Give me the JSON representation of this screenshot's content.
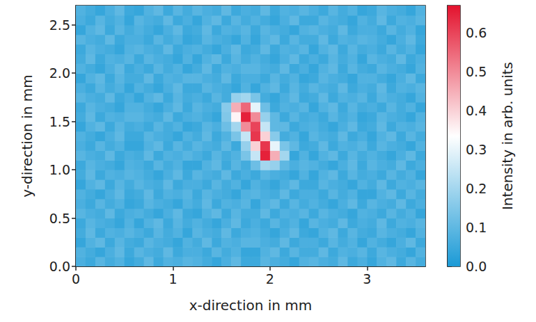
{
  "chart_data": {
    "type": "heatmap",
    "xlabel": "x-direction in mm",
    "ylabel": "y-direction in mm",
    "xlim": [
      0,
      3.6
    ],
    "ylim": [
      0,
      2.7
    ],
    "xticks": [
      0,
      1,
      2,
      3
    ],
    "yticks": [
      {
        "value": 0,
        "label": "0.0"
      },
      {
        "value": 0.5,
        "label": "0.5"
      },
      {
        "value": 1,
        "label": "1.0"
      },
      {
        "value": 1.5,
        "label": "1.5"
      },
      {
        "value": 2,
        "label": "2.0"
      },
      {
        "value": 2.5,
        "label": "2.5"
      }
    ],
    "grid": false,
    "colorbar": {
      "label": "Intensity in arb. units",
      "range": [
        0,
        0.67
      ],
      "ticks": [
        {
          "value": 0,
          "label": "0.0"
        },
        {
          "value": 0.1,
          "label": "0.1"
        },
        {
          "value": 0.2,
          "label": "0.2"
        },
        {
          "value": 0.3,
          "label": "0.3"
        },
        {
          "value": 0.4,
          "label": "0.4"
        },
        {
          "value": 0.5,
          "label": "0.5"
        },
        {
          "value": 0.6,
          "label": "0.6"
        }
      ],
      "colors": [
        "#1b9ad6",
        "#ffffff",
        "#e3132e"
      ]
    },
    "x": [
      0.05,
      0.15,
      0.25,
      0.35,
      0.45,
      0.55,
      0.65,
      0.75,
      0.85,
      0.95,
      1.05,
      1.15,
      1.25,
      1.35,
      1.45,
      1.55,
      1.65,
      1.75,
      1.85,
      1.95,
      2.05,
      2.15,
      2.25,
      2.35,
      2.45,
      2.55,
      2.65,
      2.75,
      2.85,
      2.95,
      3.05,
      3.15,
      3.25,
      3.35,
      3.45,
      3.55
    ],
    "y": [
      0.05,
      0.15,
      0.25,
      0.35,
      0.45,
      0.55,
      0.65,
      0.75,
      0.85,
      0.95,
      1.05,
      1.15,
      1.25,
      1.35,
      1.45,
      1.55,
      1.65,
      1.75,
      1.85,
      1.95,
      2.05,
      2.15,
      2.25,
      2.35,
      2.45,
      2.55,
      2.65
    ],
    "z": [
      [
        0.07,
        0.05,
        0.09,
        0.06,
        0.08,
        0.04,
        0.06,
        0.1,
        0.05,
        0.08,
        0.07,
        0.09,
        0.08,
        0.06,
        0.04,
        0.07,
        0.1,
        0.05,
        0.05,
        0.09,
        0.07,
        0.06,
        0.04,
        0.08,
        0.09,
        0.07,
        0.06,
        0.1,
        0.05,
        0.07,
        0.04,
        0.08,
        0.1,
        0.05,
        0.09,
        0.06
      ],
      [
        0.08,
        0.06,
        0.04,
        0.07,
        0.1,
        0.05,
        0.09,
        0.07,
        0.06,
        0.1,
        0.05,
        0.07,
        0.07,
        0.05,
        0.09,
        0.06,
        0.08,
        0.04,
        0.04,
        0.08,
        0.1,
        0.05,
        0.09,
        0.06,
        0.06,
        0.1,
        0.05,
        0.08,
        0.07,
        0.09,
        0.05,
        0.09,
        0.07,
        0.06,
        0.04,
        0.08
      ],
      [
        0.04,
        0.08,
        0.1,
        0.05,
        0.09,
        0.06,
        0.05,
        0.09,
        0.07,
        0.06,
        0.04,
        0.08,
        0.06,
        0.1,
        0.05,
        0.08,
        0.07,
        0.09,
        0.09,
        0.07,
        0.06,
        0.1,
        0.05,
        0.07,
        0.07,
        0.05,
        0.09,
        0.06,
        0.08,
        0.04,
        0.08,
        0.06,
        0.04,
        0.07,
        0.1,
        0.05
      ],
      [
        0.06,
        0.1,
        0.05,
        0.08,
        0.07,
        0.09,
        0.07,
        0.05,
        0.09,
        0.06,
        0.08,
        0.04,
        0.09,
        0.07,
        0.06,
        0.1,
        0.05,
        0.07,
        0.08,
        0.06,
        0.04,
        0.07,
        0.1,
        0.05,
        0.04,
        0.08,
        0.1,
        0.05,
        0.09,
        0.06,
        0.05,
        0.09,
        0.07,
        0.06,
        0.04,
        0.08
      ],
      [
        0.05,
        0.09,
        0.07,
        0.06,
        0.04,
        0.08,
        0.04,
        0.08,
        0.1,
        0.05,
        0.09,
        0.06,
        0.08,
        0.06,
        0.04,
        0.07,
        0.1,
        0.05,
        0.07,
        0.05,
        0.09,
        0.06,
        0.08,
        0.04,
        0.09,
        0.07,
        0.06,
        0.1,
        0.05,
        0.07,
        0.06,
        0.1,
        0.05,
        0.08,
        0.07,
        0.09
      ],
      [
        0.09,
        0.07,
        0.06,
        0.1,
        0.05,
        0.07,
        0.08,
        0.06,
        0.04,
        0.07,
        0.1,
        0.05,
        0.04,
        0.08,
        0.1,
        0.05,
        0.09,
        0.06,
        0.06,
        0.1,
        0.05,
        0.08,
        0.07,
        0.09,
        0.05,
        0.09,
        0.07,
        0.06,
        0.04,
        0.08,
        0.07,
        0.05,
        0.09,
        0.06,
        0.08,
        0.04
      ],
      [
        0.07,
        0.05,
        0.09,
        0.06,
        0.08,
        0.04,
        0.05,
        0.09,
        0.07,
        0.06,
        0.04,
        0.08,
        0.06,
        0.1,
        0.05,
        0.08,
        0.07,
        0.09,
        0.04,
        0.08,
        0.1,
        0.05,
        0.09,
        0.06,
        0.08,
        0.06,
        0.04,
        0.07,
        0.1,
        0.05,
        0.09,
        0.07,
        0.06,
        0.1,
        0.05,
        0.07
      ],
      [
        0.08,
        0.06,
        0.04,
        0.07,
        0.1,
        0.05,
        0.06,
        0.1,
        0.05,
        0.08,
        0.07,
        0.09,
        0.05,
        0.09,
        0.07,
        0.06,
        0.04,
        0.08,
        0.09,
        0.07,
        0.06,
        0.1,
        0.05,
        0.07,
        0.07,
        0.05,
        0.09,
        0.06,
        0.08,
        0.04,
        0.04,
        0.08,
        0.1,
        0.05,
        0.09,
        0.06
      ],
      [
        0.04,
        0.08,
        0.1,
        0.05,
        0.09,
        0.06,
        0.09,
        0.07,
        0.06,
        0.1,
        0.05,
        0.07,
        0.07,
        0.05,
        0.09,
        0.06,
        0.08,
        0.04,
        0.08,
        0.06,
        0.04,
        0.07,
        0.1,
        0.05,
        0.05,
        0.09,
        0.07,
        0.06,
        0.04,
        0.08,
        0.06,
        0.1,
        0.05,
        0.08,
        0.07,
        0.09
      ],
      [
        0.06,
        0.1,
        0.05,
        0.08,
        0.07,
        0.09,
        0.08,
        0.06,
        0.04,
        0.07,
        0.1,
        0.05,
        0.09,
        0.07,
        0.06,
        0.1,
        0.05,
        0.07,
        0.05,
        0.09,
        0.07,
        0.06,
        0.04,
        0.08,
        0.04,
        0.08,
        0.1,
        0.05,
        0.09,
        0.06,
        0.07,
        0.05,
        0.09,
        0.06,
        0.08,
        0.04
      ],
      [
        0.05,
        0.09,
        0.07,
        0.06,
        0.04,
        0.08,
        0.07,
        0.05,
        0.09,
        0.06,
        0.08,
        0.04,
        0.04,
        0.08,
        0.1,
        0.05,
        0.09,
        0.06,
        0.12,
        0.2,
        0.18,
        0.1,
        0.07,
        0.09,
        0.08,
        0.06,
        0.04,
        0.07,
        0.1,
        0.05,
        0.09,
        0.07,
        0.06,
        0.1,
        0.05,
        0.07
      ],
      [
        0.09,
        0.07,
        0.06,
        0.1,
        0.05,
        0.07,
        0.06,
        0.1,
        0.05,
        0.08,
        0.07,
        0.09,
        0.07,
        0.05,
        0.09,
        0.06,
        0.08,
        0.14,
        0.25,
        0.65,
        0.45,
        0.2,
        0.04,
        0.08,
        0.04,
        0.08,
        0.1,
        0.05,
        0.09,
        0.06,
        0.08,
        0.06,
        0.04,
        0.07,
        0.1,
        0.05
      ],
      [
        0.07,
        0.05,
        0.09,
        0.06,
        0.08,
        0.04,
        0.04,
        0.08,
        0.1,
        0.05,
        0.09,
        0.06,
        0.09,
        0.07,
        0.06,
        0.1,
        0.05,
        0.18,
        0.4,
        0.62,
        0.3,
        0.14,
        0.1,
        0.05,
        0.06,
        0.1,
        0.05,
        0.08,
        0.07,
        0.09,
        0.05,
        0.09,
        0.07,
        0.06,
        0.04,
        0.08
      ],
      [
        0.08,
        0.06,
        0.04,
        0.07,
        0.1,
        0.05,
        0.05,
        0.09,
        0.07,
        0.06,
        0.04,
        0.08,
        0.06,
        0.1,
        0.05,
        0.08,
        0.14,
        0.25,
        0.62,
        0.4,
        0.16,
        0.06,
        0.08,
        0.04,
        0.09,
        0.07,
        0.06,
        0.1,
        0.05,
        0.07,
        0.04,
        0.08,
        0.1,
        0.05,
        0.09,
        0.06
      ],
      [
        0.04,
        0.08,
        0.1,
        0.05,
        0.09,
        0.06,
        0.07,
        0.05,
        0.09,
        0.06,
        0.08,
        0.04,
        0.05,
        0.09,
        0.07,
        0.12,
        0.2,
        0.5,
        0.6,
        0.25,
        0.1,
        0.1,
        0.05,
        0.07,
        0.08,
        0.06,
        0.04,
        0.07,
        0.1,
        0.05,
        0.06,
        0.1,
        0.05,
        0.08,
        0.07,
        0.09
      ],
      [
        0.06,
        0.1,
        0.05,
        0.08,
        0.07,
        0.09,
        0.09,
        0.07,
        0.06,
        0.1,
        0.05,
        0.07,
        0.08,
        0.06,
        0.04,
        0.15,
        0.35,
        0.65,
        0.5,
        0.18,
        0.1,
        0.05,
        0.09,
        0.06,
        0.07,
        0.05,
        0.09,
        0.06,
        0.08,
        0.04,
        0.05,
        0.09,
        0.07,
        0.06,
        0.04,
        0.08
      ],
      [
        0.05,
        0.09,
        0.07,
        0.06,
        0.04,
        0.08,
        0.08,
        0.06,
        0.04,
        0.07,
        0.1,
        0.05,
        0.09,
        0.07,
        0.06,
        0.16,
        0.45,
        0.55,
        0.3,
        0.12,
        0.05,
        0.08,
        0.07,
        0.09,
        0.04,
        0.08,
        0.1,
        0.05,
        0.09,
        0.06,
        0.07,
        0.05,
        0.09,
        0.06,
        0.08,
        0.04
      ],
      [
        0.09,
        0.07,
        0.06,
        0.1,
        0.05,
        0.07,
        0.04,
        0.08,
        0.1,
        0.05,
        0.09,
        0.06,
        0.07,
        0.05,
        0.09,
        0.06,
        0.18,
        0.2,
        0.14,
        0.06,
        0.04,
        0.07,
        0.1,
        0.05,
        0.06,
        0.1,
        0.05,
        0.08,
        0.07,
        0.09,
        0.05,
        0.09,
        0.07,
        0.06,
        0.04,
        0.08
      ],
      [
        0.07,
        0.05,
        0.09,
        0.06,
        0.08,
        0.04,
        0.08,
        0.06,
        0.04,
        0.07,
        0.1,
        0.05,
        0.05,
        0.09,
        0.07,
        0.06,
        0.04,
        0.08,
        0.04,
        0.08,
        0.1,
        0.05,
        0.09,
        0.06,
        0.09,
        0.07,
        0.06,
        0.1,
        0.05,
        0.07,
        0.06,
        0.1,
        0.05,
        0.08,
        0.07,
        0.09
      ],
      [
        0.04,
        0.08,
        0.1,
        0.05,
        0.09,
        0.06,
        0.06,
        0.1,
        0.05,
        0.08,
        0.07,
        0.09,
        0.09,
        0.07,
        0.06,
        0.1,
        0.05,
        0.07,
        0.07,
        0.05,
        0.09,
        0.06,
        0.08,
        0.04,
        0.05,
        0.09,
        0.07,
        0.06,
        0.04,
        0.08,
        0.08,
        0.06,
        0.04,
        0.07,
        0.1,
        0.05
      ],
      [
        0.08,
        0.06,
        0.04,
        0.07,
        0.1,
        0.05,
        0.07,
        0.05,
        0.09,
        0.06,
        0.08,
        0.04,
        0.06,
        0.1,
        0.05,
        0.08,
        0.07,
        0.09,
        0.09,
        0.07,
        0.06,
        0.1,
        0.05,
        0.07,
        0.04,
        0.08,
        0.1,
        0.05,
        0.09,
        0.06,
        0.05,
        0.09,
        0.07,
        0.06,
        0.04,
        0.08
      ],
      [
        0.06,
        0.1,
        0.05,
        0.08,
        0.07,
        0.09,
        0.05,
        0.09,
        0.07,
        0.06,
        0.04,
        0.08,
        0.04,
        0.08,
        0.1,
        0.05,
        0.09,
        0.06,
        0.08,
        0.06,
        0.04,
        0.07,
        0.1,
        0.05,
        0.07,
        0.05,
        0.09,
        0.06,
        0.08,
        0.04,
        0.09,
        0.07,
        0.06,
        0.1,
        0.05,
        0.07
      ],
      [
        0.05,
        0.09,
        0.07,
        0.06,
        0.04,
        0.08,
        0.09,
        0.07,
        0.06,
        0.1,
        0.05,
        0.07,
        0.08,
        0.06,
        0.04,
        0.07,
        0.1,
        0.05,
        0.06,
        0.1,
        0.05,
        0.08,
        0.07,
        0.09,
        0.04,
        0.08,
        0.1,
        0.05,
        0.09,
        0.06,
        0.07,
        0.05,
        0.09,
        0.06,
        0.08,
        0.04
      ],
      [
        0.09,
        0.07,
        0.06,
        0.1,
        0.05,
        0.07,
        0.07,
        0.05,
        0.09,
        0.06,
        0.08,
        0.04,
        0.05,
        0.09,
        0.07,
        0.06,
        0.04,
        0.08,
        0.04,
        0.08,
        0.1,
        0.05,
        0.09,
        0.06,
        0.06,
        0.1,
        0.05,
        0.08,
        0.07,
        0.09,
        0.08,
        0.06,
        0.04,
        0.07,
        0.1,
        0.05
      ],
      [
        0.04,
        0.08,
        0.1,
        0.05,
        0.09,
        0.06,
        0.08,
        0.06,
        0.04,
        0.07,
        0.1,
        0.05,
        0.06,
        0.1,
        0.05,
        0.08,
        0.07,
        0.09,
        0.05,
        0.09,
        0.07,
        0.06,
        0.04,
        0.08,
        0.09,
        0.07,
        0.06,
        0.1,
        0.05,
        0.07,
        0.07,
        0.05,
        0.09,
        0.06,
        0.08,
        0.04
      ],
      [
        0.07,
        0.05,
        0.09,
        0.06,
        0.08,
        0.04,
        0.09,
        0.07,
        0.06,
        0.1,
        0.05,
        0.07,
        0.04,
        0.08,
        0.1,
        0.05,
        0.09,
        0.06,
        0.08,
        0.06,
        0.04,
        0.07,
        0.1,
        0.05,
        0.05,
        0.09,
        0.07,
        0.06,
        0.04,
        0.08,
        0.06,
        0.1,
        0.05,
        0.08,
        0.07,
        0.09
      ],
      [
        0.08,
        0.06,
        0.04,
        0.07,
        0.1,
        0.05,
        0.04,
        0.08,
        0.1,
        0.05,
        0.09,
        0.06,
        0.09,
        0.07,
        0.06,
        0.1,
        0.05,
        0.07,
        0.06,
        0.1,
        0.05,
        0.08,
        0.07,
        0.09,
        0.07,
        0.05,
        0.09,
        0.06,
        0.08,
        0.04,
        0.05,
        0.09,
        0.07,
        0.06,
        0.04,
        0.08
      ]
    ]
  }
}
